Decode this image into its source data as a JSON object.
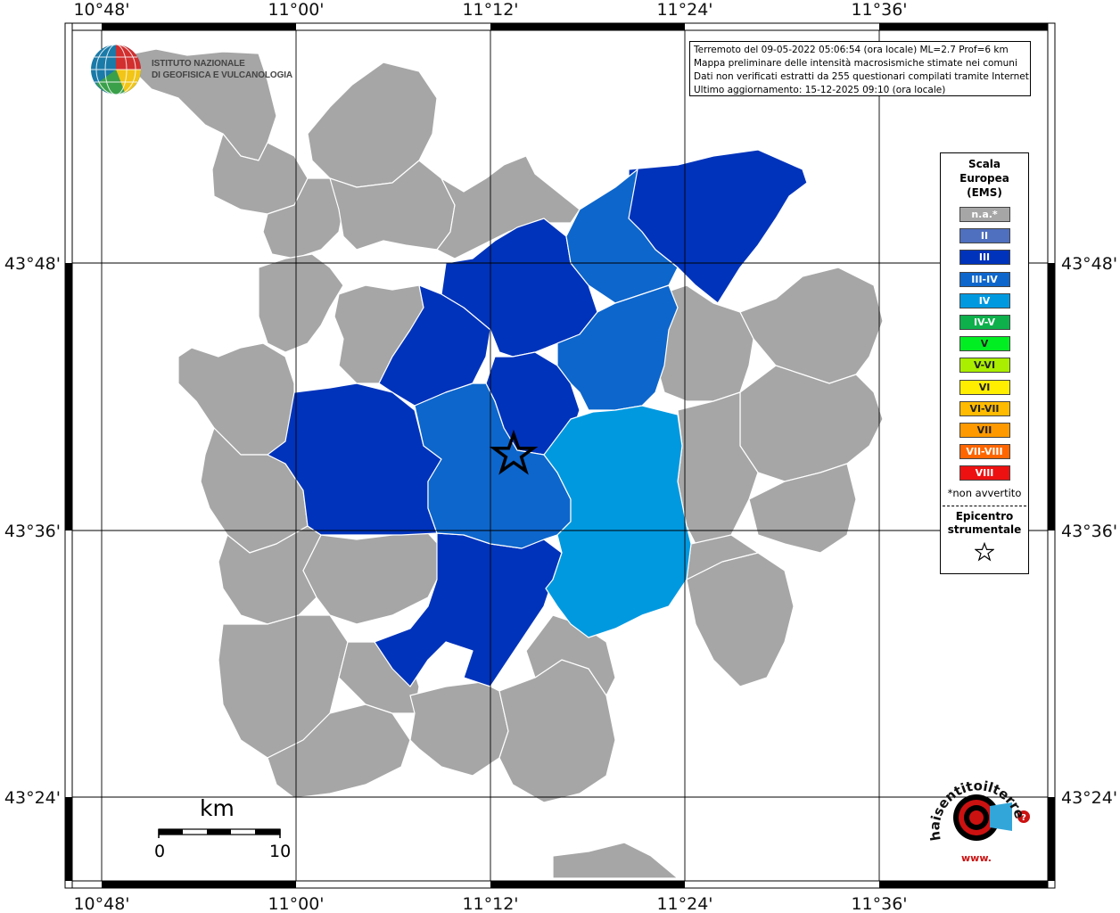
{
  "map": {
    "graticule": {
      "longitudes": [
        "10°48'",
        "11°00'",
        "11°12'",
        "11°24'",
        "11°36'"
      ],
      "latitudes": [
        "43°48'",
        "43°36'",
        "43°24'"
      ]
    },
    "epicenter_marker": "star-icon"
  },
  "info_box": {
    "line1": "Terremoto del 09-05-2022 05:06:54 (ora locale) ML=2.7 Prof=6 km",
    "line2": "Mappa preliminare delle intensità macrosismiche stimate nei comuni",
    "line3": "Dati non verificati estratti da 255 questionari compilati tramite Internet.",
    "line4": "Ultimo aggiornamento: 15-12-2025 09:10 (ora locale)"
  },
  "logo": {
    "line1": "ISTITUTO NAZIONALE",
    "line2": "DI GEOFISICA E VULCANOLOGIA"
  },
  "legend": {
    "title_line1": "Scala",
    "title_line2": "Europea",
    "title_line3": "(EMS)",
    "items": [
      {
        "label": "n.a.*",
        "color": "#a6a6a6"
      },
      {
        "label": "II",
        "color": "#4f6fbf"
      },
      {
        "label": "III",
        "color": "#0033bb"
      },
      {
        "label": "III-IV",
        "color": "#0d66cc"
      },
      {
        "label": "IV",
        "color": "#0099e0"
      },
      {
        "label": "IV-V",
        "color": "#0eb04c"
      },
      {
        "label": "V",
        "color": "#00ee22"
      },
      {
        "label": "V-VI",
        "color": "#aaee00"
      },
      {
        "label": "VI",
        "color": "#ffee00"
      },
      {
        "label": "VI-VII",
        "color": "#ffbb00"
      },
      {
        "label": "VII",
        "color": "#ff9900"
      },
      {
        "label": "VII-VIII",
        "color": "#ff6600"
      },
      {
        "label": "VIII",
        "color": "#ee1111"
      }
    ],
    "note": "*non avvertito",
    "epicenter_line1": "Epicentro",
    "epicenter_line2": "strumentale"
  },
  "scale_bar": {
    "unit": "km",
    "start": "0",
    "end": "10"
  },
  "badge": {
    "text": "haisentitoilterremoto.it",
    "prefix": "www."
  },
  "colors": {
    "na": "#a6a6a6",
    "III": "#0033bb",
    "III-IV": "#0d66cc",
    "IV": "#0099e0"
  }
}
